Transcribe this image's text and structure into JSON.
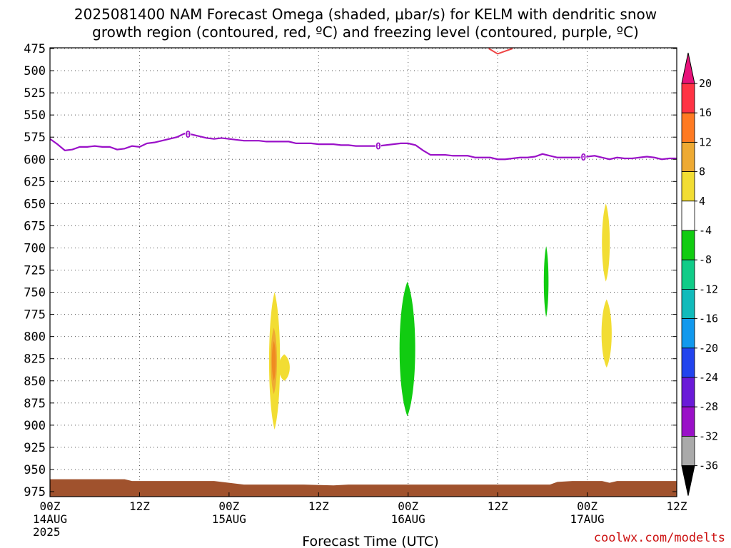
{
  "title": {
    "line1": "2025081400 NAM Forecast Omega (shaded, μbar/s) for KELM with dendritic snow",
    "line2": "growth region (contoured, red, ºC) and freezing level (contoured, purple, ºC)"
  },
  "watermark": "coolwx.com/modelts",
  "chart_data": {
    "type": "time-height",
    "xlabel": "Forecast Time (UTC)",
    "ylabel": "",
    "x_ticks": [
      {
        "hours": 0,
        "labels": [
          "00Z",
          "14AUG",
          "2025"
        ]
      },
      {
        "hours": 12,
        "labels": [
          "12Z"
        ]
      },
      {
        "hours": 24,
        "labels": [
          "00Z",
          "15AUG"
        ]
      },
      {
        "hours": 36,
        "labels": [
          "12Z"
        ]
      },
      {
        "hours": 48,
        "labels": [
          "00Z",
          "16AUG"
        ]
      },
      {
        "hours": 60,
        "labels": [
          "12Z"
        ]
      },
      {
        "hours": 72,
        "labels": [
          "00Z",
          "17AUG"
        ]
      },
      {
        "hours": 84,
        "labels": [
          "12Z"
        ]
      }
    ],
    "xlim_hours": [
      0,
      84
    ],
    "y_ticks": [
      475,
      500,
      525,
      550,
      575,
      600,
      625,
      650,
      675,
      700,
      725,
      750,
      775,
      800,
      825,
      850,
      875,
      900,
      925,
      950,
      975
    ],
    "ylim_hPa": [
      475,
      981
    ],
    "grid": true,
    "colorbar": {
      "labels": [
        "20",
        "16",
        "12",
        "8",
        "4",
        "-4",
        "-8",
        "-12",
        "-16",
        "-20",
        "-24",
        "-28",
        "-32",
        "-36"
      ],
      "colors": [
        "#ff3344",
        "#ff7a22",
        "#eeaa33",
        "#f2dd33",
        "#ffffff",
        "#11cc11",
        "#11cc88",
        "#11bbbb",
        "#1199ee",
        "#2244ee",
        "#6a1ad8",
        "#9a10c8",
        "#aaaaaa"
      ],
      "top_arrow_color": "#e8127a",
      "bottom_arrow_color": "#000000"
    },
    "freezing_level": {
      "color": "#9a10c8",
      "label": "0",
      "label_hours": [
        18.5,
        44.0,
        71.5
      ],
      "points": [
        [
          0,
          577
        ],
        [
          1,
          583
        ],
        [
          2,
          590
        ],
        [
          3,
          589
        ],
        [
          4,
          586
        ],
        [
          5,
          586
        ],
        [
          6,
          585
        ],
        [
          7,
          586
        ],
        [
          8,
          586
        ],
        [
          9,
          589
        ],
        [
          10,
          588
        ],
        [
          11,
          585
        ],
        [
          12,
          586
        ],
        [
          13,
          582
        ],
        [
          14,
          581
        ],
        [
          15,
          579
        ],
        [
          16,
          577
        ],
        [
          17,
          575
        ],
        [
          18,
          571
        ],
        [
          19,
          572
        ],
        [
          20,
          574
        ],
        [
          21,
          576
        ],
        [
          22,
          577
        ],
        [
          23,
          576
        ],
        [
          24,
          577
        ],
        [
          25,
          578
        ],
        [
          26,
          579
        ],
        [
          27,
          579
        ],
        [
          28,
          579
        ],
        [
          29,
          580
        ],
        [
          30,
          580
        ],
        [
          31,
          580
        ],
        [
          32,
          580
        ],
        [
          33,
          582
        ],
        [
          34,
          582
        ],
        [
          35,
          582
        ],
        [
          36,
          583
        ],
        [
          37,
          583
        ],
        [
          38,
          583
        ],
        [
          39,
          584
        ],
        [
          40,
          584
        ],
        [
          41,
          585
        ],
        [
          42,
          585
        ],
        [
          43,
          585
        ],
        [
          44,
          585
        ],
        [
          45,
          584
        ],
        [
          46,
          583
        ],
        [
          47,
          582
        ],
        [
          48,
          582
        ],
        [
          49,
          584
        ],
        [
          50,
          590
        ],
        [
          51,
          595
        ],
        [
          52,
          595
        ],
        [
          53,
          595
        ],
        [
          54,
          596
        ],
        [
          55,
          596
        ],
        [
          56,
          596
        ],
        [
          57,
          598
        ],
        [
          58,
          598
        ],
        [
          59,
          598
        ],
        [
          60,
          600
        ],
        [
          61,
          600
        ],
        [
          62,
          599
        ],
        [
          63,
          598
        ],
        [
          64,
          598
        ],
        [
          65,
          597
        ],
        [
          66,
          594
        ],
        [
          67,
          596
        ],
        [
          68,
          598
        ],
        [
          69,
          598
        ],
        [
          70,
          598
        ],
        [
          71,
          598
        ],
        [
          72,
          597
        ],
        [
          73,
          596
        ],
        [
          74,
          598
        ],
        [
          75,
          600
        ],
        [
          76,
          598
        ],
        [
          77,
          599
        ],
        [
          78,
          599
        ],
        [
          79,
          598
        ],
        [
          80,
          597
        ],
        [
          81,
          598
        ],
        [
          82,
          600
        ],
        [
          83,
          599
        ],
        [
          84,
          599
        ]
      ]
    },
    "dgz_contour": {
      "color": "#ee4444",
      "points": [
        [
          58.8,
          475
        ],
        [
          60.0,
          481
        ],
        [
          61.0,
          478
        ],
        [
          62.0,
          475
        ]
      ]
    },
    "omega_regions": [
      {
        "value_range": "4 to 8",
        "color": "#f2dd33",
        "time_center": 30.1,
        "time_halfwidth": 0.7,
        "top": 750,
        "bottom": 905
      },
      {
        "value_range": "8 to 12",
        "color": "#eeaa33",
        "time_center": 30.0,
        "time_halfwidth": 0.4,
        "top": 790,
        "bottom": 865
      },
      {
        "value_range": "12 to 16",
        "color": "#f08a22",
        "time_center": 30.0,
        "time_halfwidth": 0.25,
        "top": 805,
        "bottom": 850
      },
      {
        "value_range": "4 to 8",
        "color": "#f2dd33",
        "time_center": 31.4,
        "time_halfwidth": 0.7,
        "top": 820,
        "bottom": 850
      },
      {
        "value_range": "-8 to -4",
        "color": "#11cc11",
        "time_center": 47.9,
        "time_halfwidth": 1.0,
        "top": 738,
        "bottom": 890
      },
      {
        "value_range": "-8 to -4",
        "color": "#11cc11",
        "time_center": 66.5,
        "time_halfwidth": 0.3,
        "top": 698,
        "bottom": 778
      },
      {
        "value_range": "4 to 8",
        "color": "#f2dd33",
        "time_center": 74.5,
        "time_halfwidth": 0.5,
        "top": 650,
        "bottom": 738
      },
      {
        "value_range": "4 to 8",
        "color": "#f2dd33",
        "time_center": 74.6,
        "time_halfwidth": 0.65,
        "top": 758,
        "bottom": 835
      }
    ],
    "terrain": {
      "color": "#a0522d",
      "points": [
        [
          0,
          961
        ],
        [
          4,
          961
        ],
        [
          10,
          961
        ],
        [
          11,
          963
        ],
        [
          14,
          963
        ],
        [
          22,
          963
        ],
        [
          24,
          965
        ],
        [
          26,
          967
        ],
        [
          34,
          967
        ],
        [
          38,
          968
        ],
        [
          40,
          967
        ],
        [
          45,
          967
        ],
        [
          48,
          967
        ],
        [
          56,
          967
        ],
        [
          60,
          967
        ],
        [
          67,
          967
        ],
        [
          68,
          964
        ],
        [
          70,
          963
        ],
        [
          74,
          963
        ],
        [
          75,
          965
        ],
        [
          76,
          963
        ],
        [
          80,
          963
        ],
        [
          84,
          963
        ]
      ]
    }
  }
}
